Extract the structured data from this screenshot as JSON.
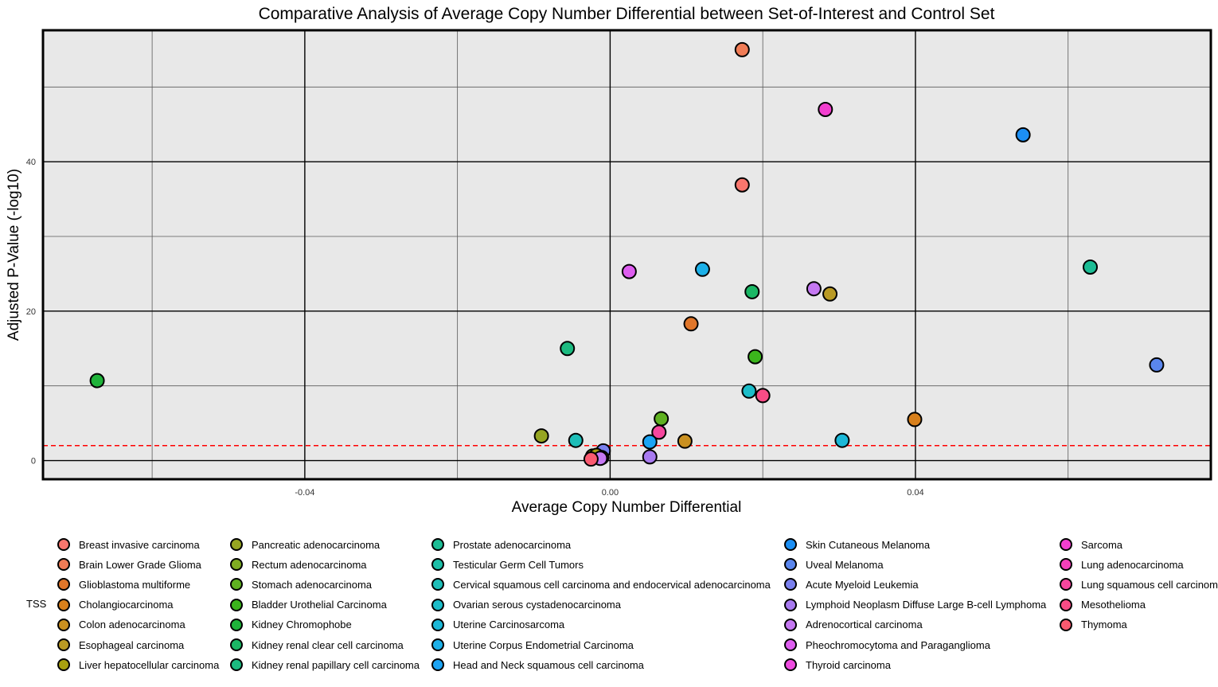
{
  "chart_data": {
    "type": "scatter",
    "title": "Comparative Analysis of Average Copy Number Differential between Set-of-Interest and Control Set",
    "xlabel": "Average Copy Number Differential",
    "ylabel": "Adjusted P-Value (-log10)",
    "xlim": [
      -0.0743,
      0.0787
    ],
    "ylim": [
      -2.5,
      57.6
    ],
    "x_ticks": [
      -0.04,
      0.0,
      0.04
    ],
    "x_tick_labels": [
      "-0.04",
      "0.00",
      "0.04"
    ],
    "y_ticks": [
      0,
      20,
      40
    ],
    "y_tick_labels": [
      "0",
      "20",
      "40"
    ],
    "threshold_line": {
      "y": 2,
      "color": "#ff0000",
      "style": "dashed"
    },
    "grid": true,
    "panel_background": "#e8e8e8",
    "legend": {
      "title": "TSS",
      "position": "bottom",
      "entries": [
        {
          "name": "Breast invasive carcinoma",
          "color": "#f8766d"
        },
        {
          "name": "Brain Lower Grade Glioma",
          "color": "#f07c56"
        },
        {
          "name": "Glioblastoma multiforme",
          "color": "#e0762a"
        },
        {
          "name": "Cholangiocarcinoma",
          "color": "#d8801c"
        },
        {
          "name": "Colon adenocarcinoma",
          "color": "#c99020"
        },
        {
          "name": "Esophageal carcinoma",
          "color": "#b99a24"
        },
        {
          "name": "Liver hepatocellular carcinoma",
          "color": "#a8a010"
        },
        {
          "name": "Pancreatic adenocarcinoma",
          "color": "#96a522"
        },
        {
          "name": "Rectum adenocarcinoma",
          "color": "#7fac22"
        },
        {
          "name": "Stomach adenocarcinoma",
          "color": "#5fb121"
        },
        {
          "name": "Bladder Urothelial Carcinoma",
          "color": "#3bb51c"
        },
        {
          "name": "Kidney Chromophobe",
          "color": "#1fb33a"
        },
        {
          "name": "Kidney renal clear cell carcinoma",
          "color": "#1bb765"
        },
        {
          "name": "Kidney renal papillary cell carcinoma",
          "color": "#1cba80"
        },
        {
          "name": "Prostate adenocarcinoma",
          "color": "#1cbd95"
        },
        {
          "name": "Testicular Germ Cell Tumors",
          "color": "#1cbfa8"
        },
        {
          "name": "Cervical squamous cell carcinoma and endocervical adenocarcinoma",
          "color": "#1ebeb8"
        },
        {
          "name": "Ovarian serous cystadenocarcinoma",
          "color": "#1cbdc9"
        },
        {
          "name": "Uterine Carcinosarcoma",
          "color": "#1cb8d8"
        },
        {
          "name": "Uterine Corpus Endometrial Carcinoma",
          "color": "#1cb0e8"
        },
        {
          "name": "Head and Neck squamous cell carcinoma",
          "color": "#1ca4f4"
        },
        {
          "name": "Skin Cutaneous Melanoma",
          "color": "#1c8ff4"
        },
        {
          "name": "Uveal Melanoma",
          "color": "#5a86ee"
        },
        {
          "name": "Acute Myeloid Leukemia",
          "color": "#7a80ee"
        },
        {
          "name": "Lymphoid Neoplasm Diffuse Large B-cell Lymphoma",
          "color": "#a87af0"
        },
        {
          "name": "Adrenocortical carcinoma",
          "color": "#c578f2"
        },
        {
          "name": "Pheochromocytoma and Paraganglioma",
          "color": "#de5ef0"
        },
        {
          "name": "Thyroid carcinoma",
          "color": "#ee4be0"
        },
        {
          "name": "Sarcoma",
          "color": "#f23fcf"
        },
        {
          "name": "Lung adenocarcinoma",
          "color": "#f440b9"
        },
        {
          "name": "Lung squamous cell carcinoma",
          "color": "#f6469e"
        },
        {
          "name": "Mesothelioma",
          "color": "#f84c86"
        },
        {
          "name": "Thymoma",
          "color": "#fa5a70"
        }
      ]
    },
    "points": [
      {
        "x": 0.0173,
        "y": 55.0,
        "color": "#f07c56"
      },
      {
        "x": 0.0282,
        "y": 47.0,
        "color": "#f23fcf"
      },
      {
        "x": 0.0541,
        "y": 43.6,
        "color": "#1c8ff4"
      },
      {
        "x": 0.0173,
        "y": 36.9,
        "color": "#f8766d"
      },
      {
        "x": 0.0629,
        "y": 25.9,
        "color": "#1cbd95"
      },
      {
        "x": 0.0025,
        "y": 25.3,
        "color": "#de5ef0"
      },
      {
        "x": 0.0121,
        "y": 25.6,
        "color": "#1cb0e8"
      },
      {
        "x": 0.0186,
        "y": 22.6,
        "color": "#1bb765"
      },
      {
        "x": 0.0267,
        "y": 23.0,
        "color": "#c578f2"
      },
      {
        "x": 0.0288,
        "y": 22.3,
        "color": "#b99a24"
      },
      {
        "x": 0.0106,
        "y": 18.3,
        "color": "#e0762a"
      },
      {
        "x": -0.0056,
        "y": 15.0,
        "color": "#1cba80"
      },
      {
        "x": 0.019,
        "y": 13.9,
        "color": "#3bb51c"
      },
      {
        "x": -0.0672,
        "y": 10.7,
        "color": "#1fb33a"
      },
      {
        "x": 0.0716,
        "y": 12.8,
        "color": "#5a86ee"
      },
      {
        "x": 0.0182,
        "y": 9.3,
        "color": "#1cbdc9"
      },
      {
        "x": 0.02,
        "y": 8.7,
        "color": "#f84c86"
      },
      {
        "x": 0.0067,
        "y": 5.6,
        "color": "#5fb121"
      },
      {
        "x": 0.0399,
        "y": 5.5,
        "color": "#d8801c"
      },
      {
        "x": 0.0064,
        "y": 3.8,
        "color": "#f6469e"
      },
      {
        "x": -0.009,
        "y": 3.3,
        "color": "#96a522"
      },
      {
        "x": -0.0045,
        "y": 2.7,
        "color": "#1ebeb8"
      },
      {
        "x": 0.0052,
        "y": 2.5,
        "color": "#1ca4f4"
      },
      {
        "x": 0.0098,
        "y": 2.6,
        "color": "#c99020"
      },
      {
        "x": 0.0304,
        "y": 2.7,
        "color": "#1cb8d8"
      },
      {
        "x": -0.0009,
        "y": 1.3,
        "color": "#7a80ee"
      },
      {
        "x": -0.0023,
        "y": 0.6,
        "color": "#7fac22"
      },
      {
        "x": -0.0018,
        "y": 0.7,
        "color": "#a8a010"
      },
      {
        "x": -0.0011,
        "y": 0.4,
        "color": "#b99a24"
      },
      {
        "x": -0.0013,
        "y": 0.3,
        "color": "#c578f2"
      },
      {
        "x": 0.0052,
        "y": 0.5,
        "color": "#a87af0"
      },
      {
        "x": -0.0025,
        "y": 0.2,
        "color": "#fa5a70"
      }
    ]
  }
}
